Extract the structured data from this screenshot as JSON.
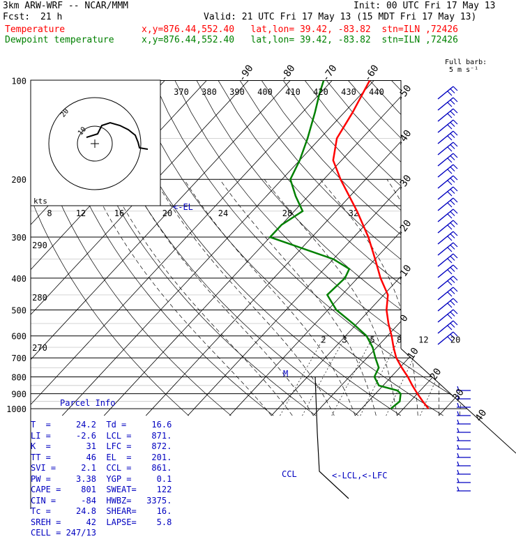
{
  "header": {
    "model": "3km ARW-WRF -- NCAR/MMM",
    "init": "Init: 00 UTC Fri 17 May 13",
    "fcst_label": "Fcst:",
    "fcst_hours": "21 h",
    "valid": "Valid: 21 UTC Fri 17 May 13 (15 MDT Fri 17 May 13)",
    "temp_label": "Temperature",
    "temp_loc": "x,y=876.44,552.40   lat,lon= 39.42, -83.82  stn=ILN ,72426",
    "dew_label": "Dewpoint temperature",
    "dew_loc": "x,y=876.44,552.40   lat,lon= 39.42, -83.82  stn=ILN ,72426"
  },
  "parcel_info": {
    "title": "Parcel Info",
    "rows": [
      [
        "T  =",
        "24.2",
        "Td =",
        "16.6"
      ],
      [
        "LI =",
        "-2.6",
        "LCL =",
        "871."
      ],
      [
        "K  =",
        "31",
        "LFC =",
        "872."
      ],
      [
        "TT =",
        "46",
        "EL  =",
        "201."
      ],
      [
        "SVI =",
        "2.1",
        "CCL =",
        "861."
      ],
      [
        "PW =",
        "3.38",
        "YGP =",
        "0.1"
      ],
      [
        "CAPE =",
        "801",
        "SWEAT=",
        "122"
      ],
      [
        "CIN =",
        "-84",
        "HWBZ=",
        "3375."
      ],
      [
        "Tc =",
        "24.8",
        "SHEAR=",
        "16."
      ],
      [
        "SREH =",
        "42",
        "LAPSE=",
        "5.8"
      ],
      [
        "CELL =",
        "247/13",
        "",
        ""
      ]
    ]
  },
  "barb_legend": {
    "title": "Full barb:",
    "value": "5 m s⁻¹"
  },
  "annotations": {
    "el": "<-EL",
    "lcl_lfc": "<-LCL,<-LFC",
    "ccl": "CCL",
    "mu": "M",
    "kts": "kts",
    "hodo_inner": "10",
    "hodo_outer": "20"
  },
  "colors": {
    "temperature": "#ff0000",
    "dewpoint": "#008000",
    "barbs": "#0000c0",
    "labels": "#0000c0"
  },
  "chart_data": {
    "type": "line",
    "title": "",
    "ylabel": "",
    "xlabel": "",
    "pressure_levels": [
      100,
      200,
      300,
      400,
      500,
      600,
      700,
      800,
      900,
      1000
    ],
    "isotherm_labels": [
      -90,
      -80,
      -70,
      -60,
      -50,
      -40,
      -30,
      -20,
      -10,
      0,
      10,
      20,
      30,
      40
    ],
    "theta_e_labels": [
      370,
      380,
      390,
      400,
      410,
      420,
      430,
      440
    ],
    "theta_labels_left": [
      290,
      280,
      270
    ],
    "mixing_ratio_labels": [
      2,
      3,
      5,
      8,
      12,
      20
    ],
    "hodograph_speed_labels": [
      8,
      12,
      16,
      20,
      24,
      28,
      32
    ],
    "series": [
      {
        "name": "Temperature",
        "points": [
          [
            1000,
            26
          ],
          [
            950,
            23
          ],
          [
            900,
            20
          ],
          [
            850,
            17
          ],
          [
            800,
            14
          ],
          [
            750,
            10.5
          ],
          [
            700,
            7
          ],
          [
            650,
            4
          ],
          [
            600,
            1
          ],
          [
            550,
            -2.5
          ],
          [
            500,
            -6
          ],
          [
            450,
            -9
          ],
          [
            400,
            -14.5
          ],
          [
            350,
            -20
          ],
          [
            300,
            -26.5
          ],
          [
            250,
            -35
          ],
          [
            200,
            -46
          ],
          [
            175,
            -52
          ],
          [
            150,
            -56
          ],
          [
            125,
            -58
          ],
          [
            100,
            -61
          ]
        ]
      },
      {
        "name": "Dewpoint temperature",
        "points": [
          [
            1000,
            17
          ],
          [
            950,
            17.5
          ],
          [
            900,
            16
          ],
          [
            880,
            14.5
          ],
          [
            850,
            9
          ],
          [
            800,
            6
          ],
          [
            750,
            5
          ],
          [
            700,
            2
          ],
          [
            650,
            -1
          ],
          [
            600,
            -5
          ],
          [
            550,
            -11
          ],
          [
            500,
            -18
          ],
          [
            450,
            -23.5
          ],
          [
            400,
            -23
          ],
          [
            375,
            -24
          ],
          [
            350,
            -30
          ],
          [
            300,
            -50
          ],
          [
            275,
            -50
          ],
          [
            250,
            -48
          ],
          [
            225,
            -53
          ],
          [
            200,
            -58
          ],
          [
            175,
            -60
          ],
          [
            150,
            -63
          ],
          [
            125,
            -67
          ],
          [
            110,
            -70
          ],
          [
            100,
            -72
          ]
        ]
      }
    ]
  }
}
